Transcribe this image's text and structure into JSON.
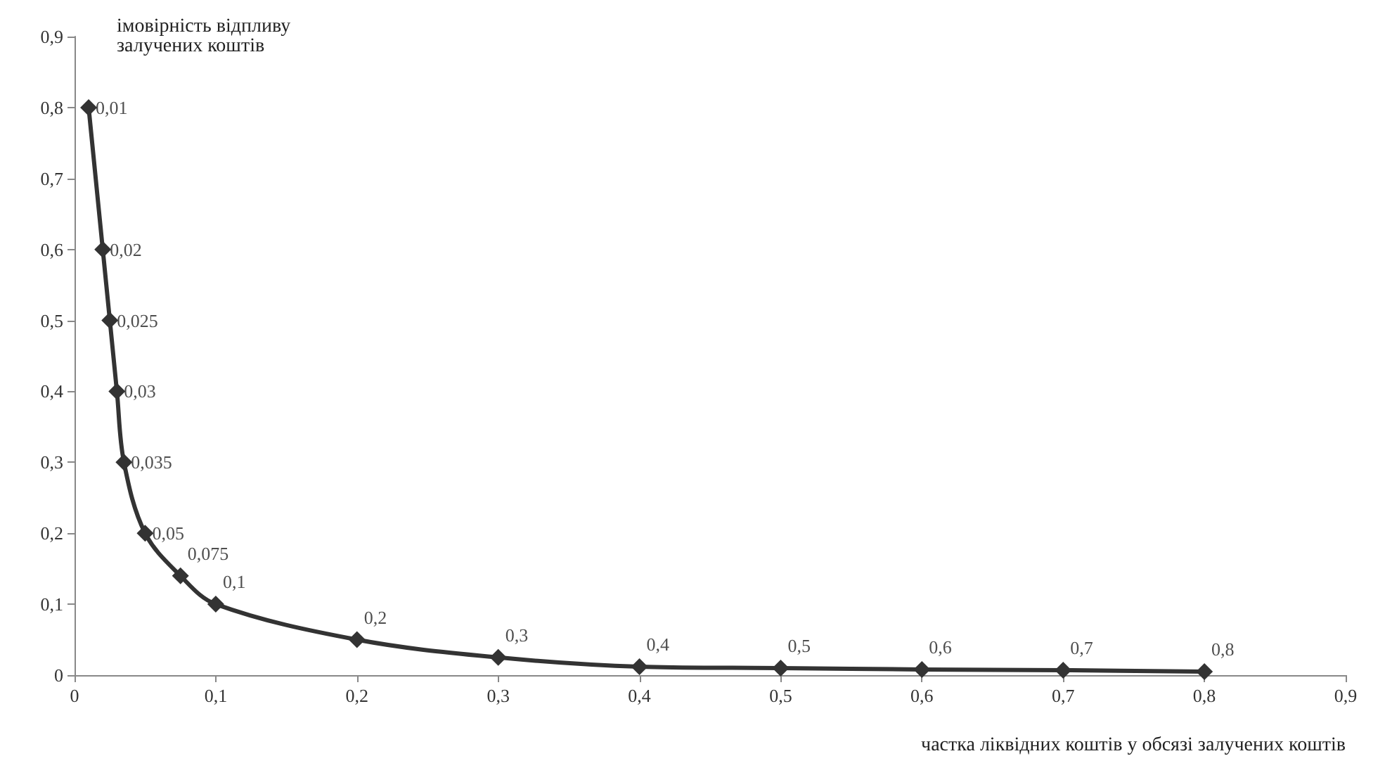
{
  "chart_data": {
    "type": "line",
    "xlabel": "частка ліквідних коштів у обсязі залучених коштів",
    "ylabel": "імовірність відпливу\nзалучених коштів",
    "x": [
      0.01,
      0.02,
      0.025,
      0.03,
      0.035,
      0.05,
      0.075,
      0.1,
      0.2,
      0.3,
      0.4,
      0.5,
      0.6,
      0.7,
      0.8
    ],
    "series": [
      {
        "color": "#333333",
        "values": [
          0.8,
          0.6,
          0.5,
          0.4,
          0.3,
          0.2,
          0.14,
          0.1,
          0.05,
          0.025,
          0.012,
          0.01,
          0.008,
          0.007,
          0.005
        ]
      }
    ],
    "annotations": [
      {
        "text": "0,01",
        "x": 0.01,
        "y": 0.8
      },
      {
        "text": "0,02",
        "x": 0.02,
        "y": 0.6
      },
      {
        "text": "0,025",
        "x": 0.025,
        "y": 0.5
      },
      {
        "text": "0,03",
        "x": 0.03,
        "y": 0.4
      },
      {
        "text": "0,035",
        "x": 0.035,
        "y": 0.3
      },
      {
        "text": "0,05",
        "x": 0.05,
        "y": 0.2
      },
      {
        "text": "0,075",
        "x": 0.075,
        "y": 0.14
      },
      {
        "text": "0,1",
        "x": 0.1,
        "y": 0.1
      },
      {
        "text": "0,2",
        "x": 0.2,
        "y": 0.05
      },
      {
        "text": "0,3",
        "x": 0.3,
        "y": 0.025
      },
      {
        "text": "0,4",
        "x": 0.4,
        "y": 0.012
      },
      {
        "text": "0,5",
        "x": 0.5,
        "y": 0.01
      },
      {
        "text": "0,6",
        "x": 0.6,
        "y": 0.008
      },
      {
        "text": "0,7",
        "x": 0.7,
        "y": 0.007
      },
      {
        "text": "0,8",
        "x": 0.8,
        "y": 0.005
      }
    ],
    "xlim": [
      0,
      0.9
    ],
    "ylim": [
      0,
      0.9
    ],
    "xticks": [
      0,
      {
        "value": 0.1,
        "label": "0,1"
      },
      {
        "value": 0.2,
        "label": "0,2"
      },
      {
        "value": 0.3,
        "label": "0,3"
      },
      {
        "value": 0.4,
        "label": "0,4"
      },
      {
        "value": 0.5,
        "label": "0,5"
      },
      {
        "value": 0.6,
        "label": "0,6"
      },
      {
        "value": 0.7,
        "label": "0,7"
      },
      {
        "value": 0.8,
        "label": "0,8"
      },
      {
        "value": 0.9,
        "label": "0,9"
      }
    ],
    "yticks": [
      0,
      {
        "value": 0.1,
        "label": "0,1"
      },
      {
        "value": 0.2,
        "label": "0,2"
      },
      {
        "value": 0.3,
        "label": "0,3"
      },
      {
        "value": 0.4,
        "label": "0,4"
      },
      {
        "value": 0.5,
        "label": "0,5"
      },
      {
        "value": 0.6,
        "label": "0,6"
      },
      {
        "value": 0.7,
        "label": "0,7"
      },
      {
        "value": 0.8,
        "label": "0,8"
      },
      {
        "value": 0.9,
        "label": "0,9"
      }
    ],
    "grid": false,
    "marker": "diamond",
    "line_style": "solid"
  }
}
